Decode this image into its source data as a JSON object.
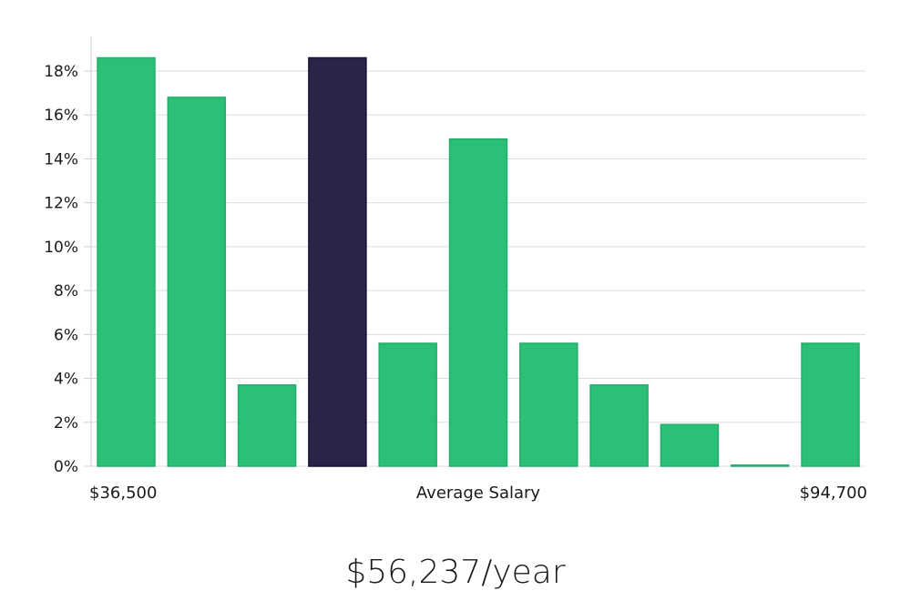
{
  "chart_data": {
    "type": "bar",
    "title": "",
    "xlabel": "Average Salary",
    "ylabel": "",
    "x_min_label": "$36,500",
    "x_max_label": "$94,700",
    "ylim": [
      0,
      19
    ],
    "yticks": [
      0,
      2,
      4,
      6,
      8,
      10,
      12,
      14,
      16,
      18
    ],
    "ytick_labels": [
      "0%",
      "2%",
      "4%",
      "6%",
      "8%",
      "10%",
      "12%",
      "14%",
      "16%",
      "18%"
    ],
    "values": [
      18.6,
      16.8,
      3.7,
      18.6,
      5.6,
      14.9,
      5.6,
      3.7,
      1.9,
      0.05,
      5.6
    ],
    "highlight_index": 3,
    "colors": {
      "bar": "#2cbf78",
      "highlight": "#2a2547",
      "grid": "#dddddd",
      "axis": "#cfcfcf"
    }
  },
  "salary_text": "$56,237/year"
}
